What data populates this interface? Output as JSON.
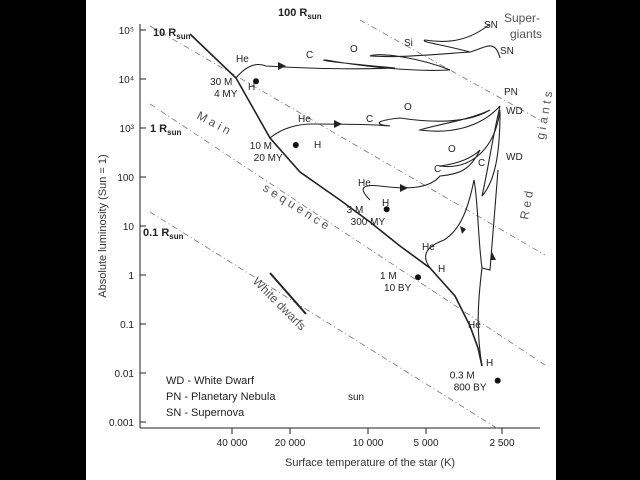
{
  "chart_data": {
    "type": "scatter",
    "title": "",
    "xlabel": "Surface temperature of the star (K)",
    "ylabel": "Absolute luminosity (Sun = 1)",
    "y_scale": "log",
    "x_ticks": [
      "40 000",
      "20 000",
      "10 000",
      "5 000",
      "2 500"
    ],
    "y_ticks": [
      "10⁵",
      "10⁴",
      "10³",
      "100",
      "10",
      "1",
      "0.1",
      "0.01",
      "0.001"
    ],
    "grid": false,
    "radius_lines": [
      {
        "label": "100 R",
        "sub": "sun"
      },
      {
        "label": "10 R",
        "sub": "sun"
      },
      {
        "label": "1 R",
        "sub": "sun"
      },
      {
        "label": "0.1 R",
        "sub": "sun"
      }
    ],
    "stars": [
      {
        "mass": "30 M",
        "age": "4 MY",
        "temperature_K": 30000,
        "luminosity": 9000
      },
      {
        "mass": "10 M",
        "age": "20 MY",
        "temperature_K": 19000,
        "luminosity": 450
      },
      {
        "mass": "3 M",
        "age": "300 MY",
        "temperature_K": 8000,
        "luminosity": 22
      },
      {
        "mass": "1 M",
        "age": "10 BY",
        "temperature_K": 5500,
        "luminosity": 0.9
      },
      {
        "mass": "0.3 M",
        "age": "800 BY",
        "temperature_K": 2600,
        "luminosity": 0.007
      }
    ],
    "track_labels": [
      "He",
      "H",
      "C",
      "O",
      "Si",
      "SN",
      "PN",
      "WD"
    ],
    "region_labels": {
      "main_sequence_1": "M a i n",
      "main_sequence_2": "s e q u e n c e",
      "red_giants_1": "R e d",
      "red_giants_2": "g i a n t s",
      "supergiants": "Super-\ngiants",
      "white_dwarfs": "White dwarfs",
      "sun": "sun"
    },
    "legend": [
      "WD - White Dwarf",
      "PN - Planetary Nebula",
      "SN - Supernova"
    ]
  }
}
